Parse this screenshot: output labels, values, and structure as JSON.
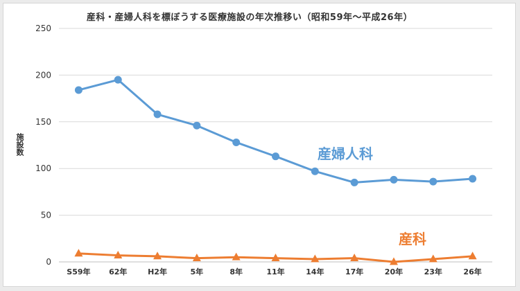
{
  "chart_data": {
    "type": "line",
    "title": "産科・産婦人科を標ぼうする医療施設の年次推移い（昭和59年〜平成26年）",
    "ylabel": "施設数",
    "xlabel": "",
    "ylim": [
      0,
      250
    ],
    "yticks": [
      0,
      50,
      100,
      150,
      200,
      250
    ],
    "grid": true,
    "categories": [
      "S59年",
      "62年",
      "H2年",
      "5年",
      "8年",
      "11年",
      "14年",
      "17年",
      "20年",
      "23年",
      "26年"
    ],
    "series": [
      {
        "name": "産婦人科",
        "color": "#5b9bd5",
        "marker": "circle",
        "values": [
          184,
          195,
          158,
          146,
          128,
          113,
          97,
          85,
          88,
          86,
          89
        ]
      },
      {
        "name": "産科",
        "color": "#ed7d31",
        "marker": "triangle",
        "values": [
          9,
          7,
          6,
          4,
          5,
          4,
          3,
          4,
          0,
          3,
          6
        ]
      }
    ]
  }
}
